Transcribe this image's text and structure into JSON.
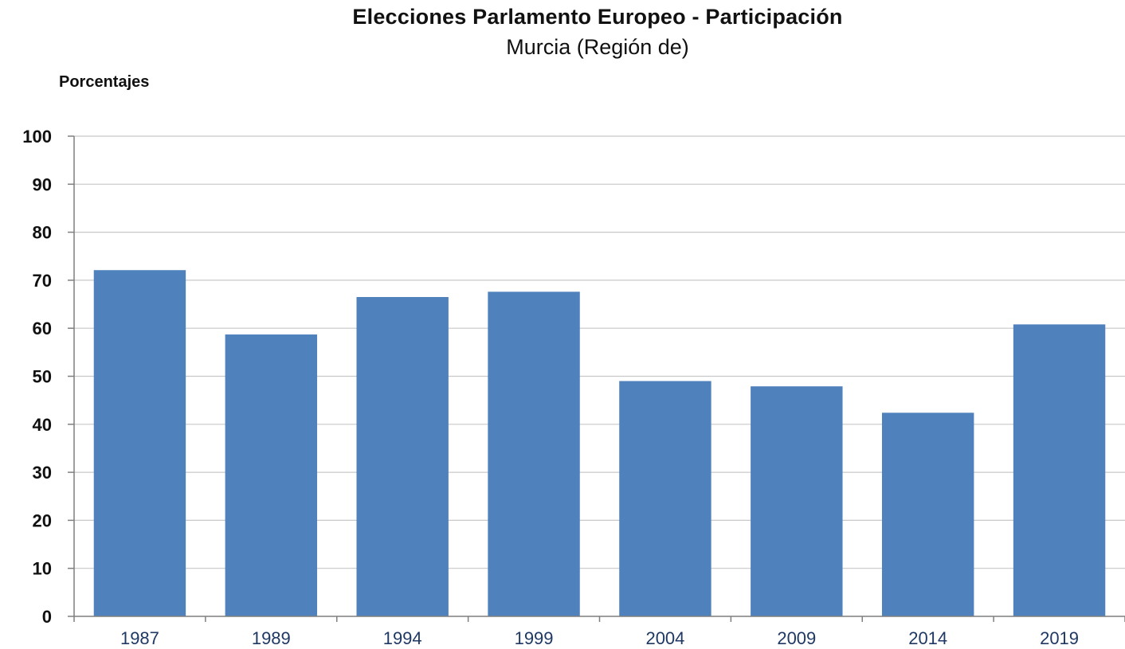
{
  "chart_data": {
    "type": "bar",
    "title": "Elecciones Parlamento Europeo - Participación",
    "subtitle": "Murcia (Región de)",
    "ylabel": "Porcentajes",
    "xlabel": "",
    "categories": [
      "1987",
      "1989",
      "1994",
      "1999",
      "2004",
      "2009",
      "2014",
      "2019"
    ],
    "values": [
      72.1,
      58.7,
      66.5,
      67.6,
      49.0,
      47.9,
      42.4,
      60.8
    ],
    "ylim": [
      0,
      100
    ],
    "yticks": [
      0,
      10,
      20,
      30,
      40,
      50,
      60,
      70,
      80,
      90,
      100
    ],
    "grid": true,
    "legend": "none",
    "colors": {
      "bar": "#4f81bd",
      "grid": "#c8c8c8",
      "axis": "#7f7f7f",
      "xtick_text": "#1f3864",
      "ytick_text": "#111111"
    }
  }
}
